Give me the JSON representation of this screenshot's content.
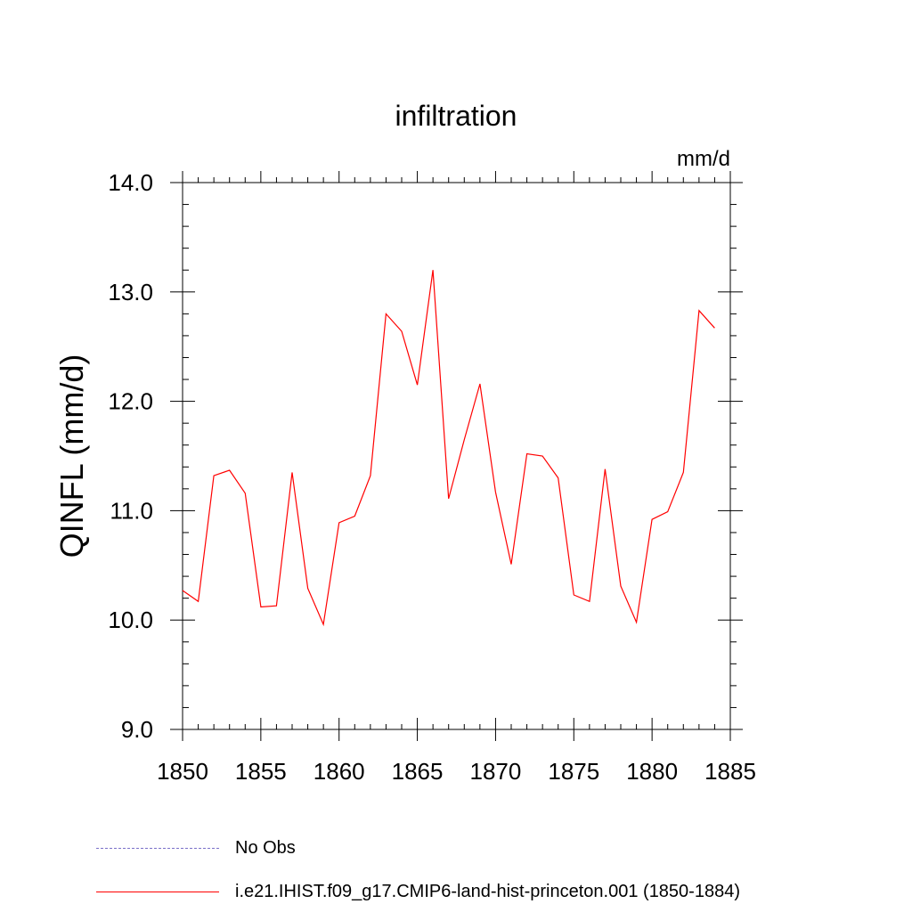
{
  "chart_data": {
    "type": "line",
    "title": "infiltration",
    "units_label": "mm/d",
    "ylabel": "QINFL  (mm/d)",
    "xlabel": "",
    "xlim": [
      1850,
      1885
    ],
    "ylim": [
      9.0,
      14.0
    ],
    "xticks": [
      1850,
      1855,
      1860,
      1865,
      1870,
      1875,
      1880,
      1885
    ],
    "yticks": [
      "9.0",
      "10.0",
      "11.0",
      "12.0",
      "13.0",
      "14.0"
    ],
    "grid": false,
    "series": [
      {
        "name": "i.e21.IHIST.f09_g17.CMIP6-land-hist-princeton.001 (1850-1884)",
        "color": "#ff0000",
        "x": [
          1850,
          1851,
          1852,
          1853,
          1854,
          1855,
          1856,
          1857,
          1858,
          1859,
          1860,
          1861,
          1862,
          1863,
          1864,
          1865,
          1866,
          1867,
          1868,
          1869,
          1870,
          1871,
          1872,
          1873,
          1874,
          1875,
          1876,
          1877,
          1878,
          1879,
          1880,
          1881,
          1882,
          1883,
          1884
        ],
        "y": [
          10.27,
          10.17,
          11.32,
          11.37,
          11.16,
          10.12,
          10.13,
          11.35,
          10.29,
          9.96,
          10.89,
          10.95,
          11.32,
          12.8,
          12.64,
          12.15,
          13.2,
          11.11,
          11.65,
          12.16,
          11.17,
          10.51,
          11.52,
          11.5,
          11.3,
          10.23,
          10.17,
          11.38,
          10.31,
          9.98,
          10.92,
          10.99,
          11.35,
          12.83,
          12.67
        ]
      }
    ]
  },
  "legend": {
    "entries": [
      {
        "label": "No Obs",
        "style": "dashed",
        "color": "#7a70c8"
      },
      {
        "label": "i.e21.IHIST.f09_g17.CMIP6-land-hist-princeton.001 (1850-1884)",
        "style": "solid",
        "color": "#ff0000"
      }
    ]
  }
}
